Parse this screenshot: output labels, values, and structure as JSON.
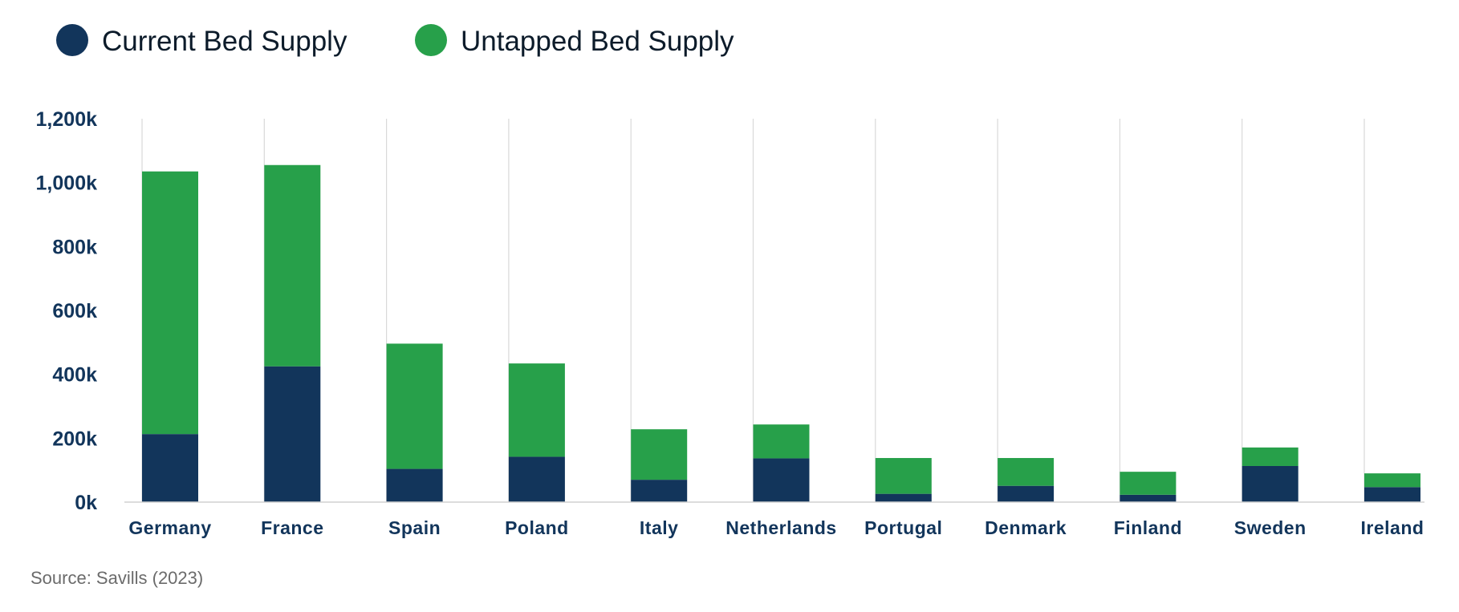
{
  "chart_data": {
    "type": "bar",
    "stacked": true,
    "title": "",
    "xlabel": "",
    "ylabel": "",
    "categories": [
      "Germany",
      "France",
      "Spain",
      "Poland",
      "Italy",
      "Netherlands",
      "Portugal",
      "Denmark",
      "Finland",
      "Sweden",
      "Ireland"
    ],
    "series": [
      {
        "name": "Current Bed Supply",
        "color": "#12355b",
        "values": [
          213,
          425,
          104,
          142,
          70,
          137,
          26,
          51,
          23,
          113,
          47
        ]
      },
      {
        "name": "Untapped Bed Supply",
        "color": "#27a04a",
        "values": [
          822,
          630,
          392,
          292,
          158,
          106,
          112,
          87,
          72,
          58,
          43
        ]
      }
    ],
    "ylim": [
      0,
      1200
    ],
    "yticks": [
      0,
      200,
      400,
      600,
      800,
      1000,
      1200
    ],
    "ytick_labels": [
      "0k",
      "200k",
      "400k",
      "600k",
      "800k",
      "1,000k",
      "1,200k"
    ],
    "legend_position": "top-left",
    "grid": "vertical"
  },
  "source": "Source: Savills (2023)"
}
